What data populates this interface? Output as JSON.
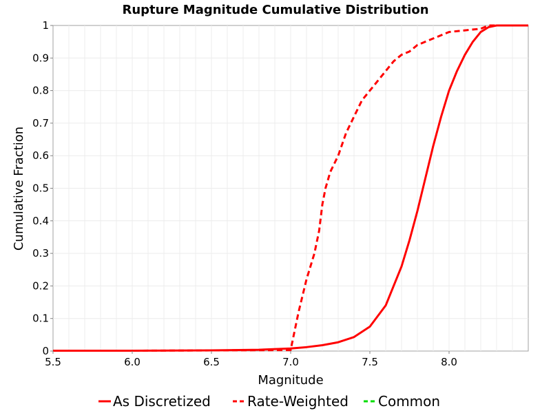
{
  "chart_data": {
    "type": "line",
    "title": "Rupture Magnitude Cumulative Distribution",
    "xlabel": "Magnitude",
    "ylabel": "Cumulative Fraction",
    "xlim": [
      5.5,
      8.5
    ],
    "ylim": [
      0,
      1
    ],
    "x_ticks": [
      "5.5",
      "6.0",
      "6.5",
      "7.0",
      "7.5",
      "8.0"
    ],
    "x_tick_values": [
      5.5,
      6.0,
      6.5,
      7.0,
      7.5,
      8.0
    ],
    "y_ticks": [
      "0",
      "0.1",
      "0.2",
      "0.3",
      "0.4",
      "0.5",
      "0.6",
      "0.7",
      "0.8",
      "0.9",
      "1"
    ],
    "y_tick_values": [
      0,
      0.1,
      0.2,
      0.3,
      0.4,
      0.5,
      0.6,
      0.7,
      0.8,
      0.9,
      1.0
    ],
    "grid": true,
    "legend_position": "bottom",
    "series": [
      {
        "name": "As Discretized",
        "color": "#ff0000",
        "style": "solid",
        "x": [
          5.5,
          6.0,
          6.5,
          6.8,
          7.0,
          7.1,
          7.2,
          7.3,
          7.4,
          7.5,
          7.6,
          7.7,
          7.75,
          7.8,
          7.85,
          7.9,
          7.95,
          8.0,
          8.05,
          8.1,
          8.15,
          8.2,
          8.25,
          8.3,
          8.35,
          8.4,
          8.5
        ],
        "y": [
          0.001,
          0.001,
          0.002,
          0.004,
          0.008,
          0.012,
          0.018,
          0.027,
          0.043,
          0.075,
          0.14,
          0.26,
          0.34,
          0.43,
          0.53,
          0.63,
          0.72,
          0.8,
          0.86,
          0.91,
          0.95,
          0.98,
          0.995,
          1.0,
          1.0,
          1.0,
          1.0
        ]
      },
      {
        "name": "Rate-Weighted",
        "color": "#ff0000",
        "style": "dashed",
        "x": [
          5.5,
          6.0,
          6.5,
          7.0,
          7.02,
          7.05,
          7.08,
          7.1,
          7.15,
          7.18,
          7.2,
          7.22,
          7.25,
          7.3,
          7.35,
          7.4,
          7.45,
          7.5,
          7.55,
          7.6,
          7.65,
          7.7,
          7.75,
          7.8,
          7.9,
          8.0,
          8.1,
          8.2,
          8.25,
          8.3,
          8.4,
          8.5
        ],
        "y": [
          0.001,
          0.001,
          0.002,
          0.003,
          0.05,
          0.12,
          0.18,
          0.22,
          0.3,
          0.37,
          0.45,
          0.5,
          0.55,
          0.6,
          0.67,
          0.72,
          0.77,
          0.8,
          0.83,
          0.86,
          0.89,
          0.91,
          0.92,
          0.94,
          0.96,
          0.98,
          0.985,
          0.99,
          1.0,
          1.0,
          1.0,
          1.0
        ]
      },
      {
        "name": "Common",
        "color": "#00dd00",
        "style": "dashed",
        "x": [],
        "y": []
      }
    ]
  }
}
